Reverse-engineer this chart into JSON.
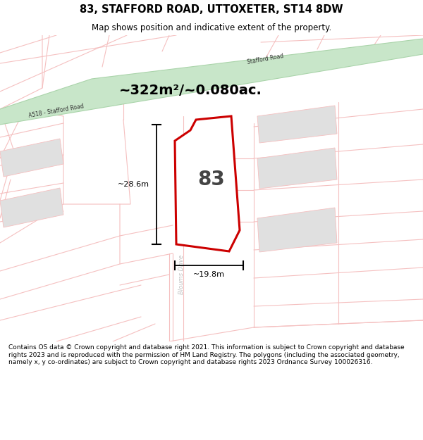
{
  "title": "83, STAFFORD ROAD, UTTOXETER, ST14 8DW",
  "subtitle": "Map shows position and indicative extent of the property.",
  "footer": "Contains OS data © Crown copyright and database right 2021. This information is subject to Crown copyright and database rights 2023 and is reproduced with the permission of HM Land Registry. The polygons (including the associated geometry, namely x, y co-ordinates) are subject to Crown copyright and database rights 2023 Ordnance Survey 100026316.",
  "area_label": "~322m²/~0.080ac.",
  "dim_height": "~28.6m",
  "dim_width": "~19.8m",
  "number_label": "83",
  "road1_label": "A518 - Stafford Road",
  "road2_label": "Stafford Road",
  "road3_label": "Bloums Drive",
  "road_fill": "#c8e6c9",
  "plot_stroke": "#cc0000",
  "light_road_color": "#f5c0c0",
  "building_color": "#e0e0e0",
  "title_fontsize": 10.5,
  "subtitle_fontsize": 8.5,
  "footer_fontsize": 6.5
}
